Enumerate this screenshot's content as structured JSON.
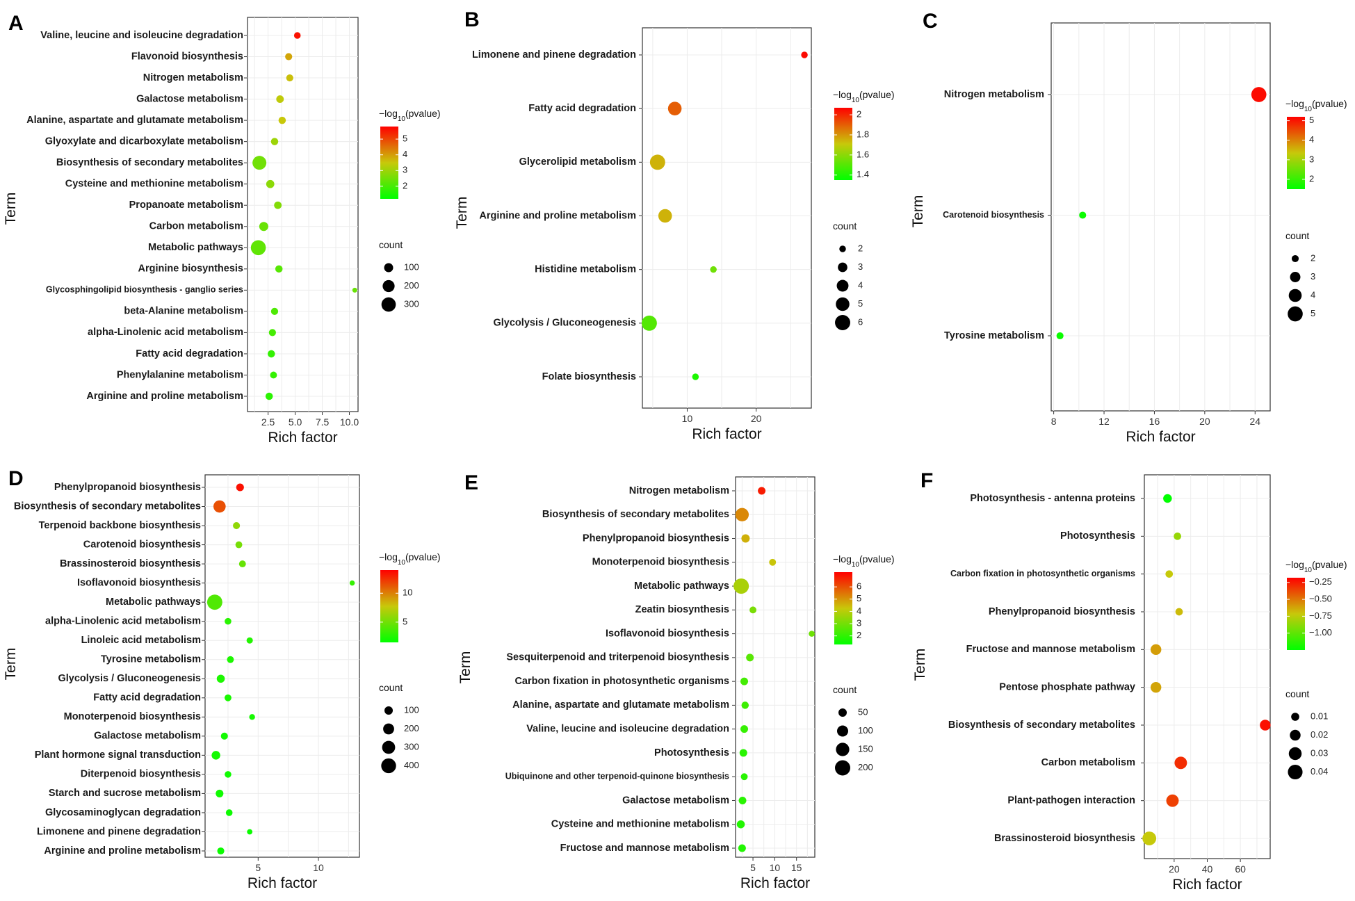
{
  "legend_titles": {
    "color": "-log10(pvalue)",
    "size": "count"
  },
  "chart_data": [
    {
      "panel": "A",
      "type": "scatter",
      "xlabel": "Rich factor",
      "ylabel": "Term",
      "xlim": [
        0.6,
        10.8
      ],
      "xticks": [
        2.5,
        5.0,
        7.5,
        10.0
      ],
      "xtick_labels": [
        "2.5",
        "5.0",
        "7.5",
        "10.0"
      ],
      "color_range": [
        1.2,
        5.8
      ],
      "color_ticks": [
        2,
        3,
        4,
        5
      ],
      "size_range": [
        1,
        380
      ],
      "size_ticks": [
        100,
        200,
        300
      ],
      "grid": true,
      "terms": [
        "Valine, leucine and isoleucine degradation",
        "Flavonoid biosynthesis",
        "Nitrogen metabolism",
        "Galactose metabolism",
        "Alanine, aspartate and glutamate metabolism",
        "Glyoxylate and dicarboxylate metabolism",
        "Biosynthesis of secondary metabolites",
        "Cysteine and methionine metabolism",
        "Propanoate metabolism",
        "Carbon metabolism",
        "Metabolic pathways",
        "Arginine biosynthesis",
        "Glycosphingolipid biosynthesis - ganglio series",
        "beta-Alanine metabolism",
        "alpha-Linolenic acid metabolism",
        "Fatty acid degradation",
        "Phenylalanine metabolism",
        "Arginine and proline metabolism"
      ],
      "rich_factor": [
        5.2,
        4.4,
        4.5,
        3.6,
        3.8,
        3.1,
        1.7,
        2.7,
        3.4,
        2.1,
        1.6,
        3.5,
        10.5,
        3.1,
        2.9,
        2.8,
        3.0,
        2.6
      ],
      "neg_log10_pvalue": [
        5.6,
        3.9,
        3.6,
        3.4,
        3.5,
        3.0,
        2.5,
        2.8,
        2.7,
        2.4,
        2.3,
        2.2,
        2.4,
        2.1,
        2.0,
        1.8,
        1.8,
        1.7
      ],
      "count": [
        40,
        50,
        50,
        60,
        55,
        55,
        280,
        75,
        60,
        100,
        330,
        55,
        8,
        50,
        50,
        55,
        45,
        55
      ]
    },
    {
      "panel": "B",
      "type": "scatter",
      "xlabel": "Rich factor",
      "ylabel": "Term",
      "xlim": [
        3.5,
        28.0
      ],
      "xticks": [
        10,
        20
      ],
      "xtick_labels": [
        "10",
        "20"
      ],
      "color_range": [
        1.35,
        2.07
      ],
      "color_ticks": [
        1.4,
        1.6,
        1.8,
        2.0
      ],
      "size_range": [
        1.5,
        6.5
      ],
      "size_ticks": [
        2,
        3,
        4,
        5,
        6
      ],
      "grid": true,
      "terms": [
        "Limonene and pinene degradation",
        "Fatty acid degradation",
        "Glycerolipid metabolism",
        "Arginine and proline metabolism",
        "Histidine metabolism",
        "Glycolysis / Gluconeogenesis",
        "Folate biosynthesis"
      ],
      "rich_factor": [
        27.0,
        8.2,
        5.7,
        6.8,
        13.8,
        4.5,
        11.2
      ],
      "neg_log10_pvalue": [
        2.05,
        1.9,
        1.75,
        1.75,
        1.55,
        1.5,
        1.4
      ],
      "count": [
        2,
        5,
        6,
        5,
        2,
        6,
        2
      ]
    },
    {
      "panel": "C",
      "type": "scatter",
      "xlabel": "Rich factor",
      "ylabel": "Term",
      "xlim": [
        7.8,
        25.2
      ],
      "xticks": [
        8,
        12,
        16,
        20,
        24
      ],
      "xtick_labels": [
        "8",
        "12",
        "16",
        "20",
        "24"
      ],
      "color_range": [
        1.5,
        5.2
      ],
      "color_ticks": [
        2,
        3,
        4,
        5
      ],
      "size_range": [
        1.5,
        5.5
      ],
      "size_ticks": [
        2,
        3,
        4,
        5
      ],
      "grid": true,
      "terms": [
        "Nitrogen metabolism",
        "Carotenoid biosynthesis",
        "Tyrosine metabolism"
      ],
      "rich_factor": [
        24.3,
        10.3,
        8.5
      ],
      "neg_log10_pvalue": [
        5.1,
        1.6,
        1.6
      ],
      "count": [
        5,
        2,
        2
      ]
    },
    {
      "panel": "D",
      "type": "scatter",
      "xlabel": "Rich factor",
      "ylabel": "Term",
      "xlim": [
        0.6,
        13.4
      ],
      "xticks": [
        5,
        10
      ],
      "xtick_labels": [
        "5",
        "10"
      ],
      "color_range": [
        1.5,
        14.0
      ],
      "color_ticks": [
        5,
        10
      ],
      "size_range": [
        1,
        470
      ],
      "size_ticks": [
        100,
        200,
        300,
        400
      ],
      "grid": true,
      "terms": [
        "Phenylpropanoid biosynthesis",
        "Biosynthesis of secondary metabolites",
        "Terpenoid backbone biosynthesis",
        "Carotenoid biosynthesis",
        "Brassinosteroid biosynthesis",
        "Isoflavonoid biosynthesis",
        "Metabolic pathways",
        "alpha-Linolenic acid metabolism",
        "Linoleic acid metabolism",
        "Tyrosine metabolism",
        "Glycolysis / Gluconeogenesis",
        "Fatty acid degradation",
        "Monoterpenoid biosynthesis",
        "Galactose metabolism",
        "Plant hormone signal transduction",
        "Diterpenoid biosynthesis",
        "Starch and sucrose metabolism",
        "Glycosaminoglycan degradation",
        "Limonene and pinene degradation",
        "Arginine and proline metabolism"
      ],
      "rich_factor": [
        3.5,
        1.8,
        3.2,
        3.4,
        3.7,
        12.8,
        1.4,
        2.5,
        4.3,
        2.7,
        1.9,
        2.5,
        4.5,
        2.2,
        1.5,
        2.5,
        1.8,
        2.6,
        4.3,
        1.9
      ],
      "neg_log10_pvalue": [
        13.5,
        11.5,
        6.0,
        5.2,
        4.7,
        3.2,
        4.0,
        2.8,
        2.6,
        2.4,
        2.4,
        2.3,
        2.2,
        2.1,
        2.1,
        2.0,
        2.0,
        1.9,
        1.8,
        1.8
      ],
      "count": [
        80,
        260,
        60,
        55,
        55,
        15,
        420,
        50,
        40,
        55,
        90,
        55,
        30,
        60,
        110,
        50,
        80,
        50,
        20,
        60
      ]
    },
    {
      "panel": "E",
      "type": "scatter",
      "xlabel": "Rich factor",
      "ylabel": "Term",
      "xlim": [
        1.0,
        19.2
      ],
      "xticks": [
        5,
        10,
        15
      ],
      "xtick_labels": [
        "5",
        "10",
        "15"
      ],
      "color_range": [
        1.3,
        7.2
      ],
      "color_ticks": [
        2,
        3,
        4,
        5,
        6
      ],
      "size_range": [
        5,
        220
      ],
      "size_ticks": [
        50,
        100,
        150,
        200
      ],
      "grid": true,
      "terms": [
        "Nitrogen metabolism",
        "Biosynthesis of secondary metabolites",
        "Phenylpropanoid biosynthesis",
        "Monoterpenoid biosynthesis",
        "Metabolic pathways",
        "Zeatin biosynthesis",
        "Isoflavonoid biosynthesis",
        "Sesquiterpenoid and triterpenoid biosynthesis",
        "Carbon fixation in photosynthetic organisms",
        "Alanine, aspartate and glutamate metabolism",
        "Valine, leucine and isoleucine degradation",
        "Photosynthesis",
        "Ubiquinone and other terpenoid-quinone biosynthesis",
        "Galactose metabolism",
        "Cysteine and methionine metabolism",
        "Fructose and mannose metabolism"
      ],
      "rich_factor": [
        7.0,
        2.5,
        3.3,
        9.5,
        2.3,
        5.0,
        18.5,
        4.3,
        3.0,
        3.2,
        3.0,
        2.8,
        3.0,
        2.6,
        2.2,
        2.5
      ],
      "neg_log10_pvalue": [
        6.8,
        5.2,
        4.6,
        4.3,
        3.8,
        3.1,
        2.9,
        2.6,
        2.3,
        2.2,
        2.1,
        1.9,
        1.9,
        1.9,
        1.8,
        1.8
      ],
      "count": [
        40,
        150,
        50,
        30,
        200,
        30,
        20,
        40,
        40,
        35,
        40,
        40,
        30,
        40,
        45,
        40
      ]
    },
    {
      "panel": "F",
      "type": "scatter",
      "xlabel": "Rich factor",
      "ylabel": "Term",
      "xlim": [
        2.0,
        78.0
      ],
      "xticks": [
        20,
        40,
        60
      ],
      "xtick_labels": [
        "20",
        "40",
        "60"
      ],
      "color_range": [
        -1.25,
        -0.18
      ],
      "color_ticks": [
        -1.0,
        -0.75,
        -0.5,
        -0.25
      ],
      "color_tick_labels": [
        "−1.00",
        "−0.75",
        "−0.50",
        "−0.25"
      ],
      "size_range": [
        0.001,
        0.048
      ],
      "size_ticks": [
        0.01,
        0.02,
        0.03,
        0.04
      ],
      "grid": true,
      "terms": [
        "Photosynthesis - antenna proteins",
        "Photosynthesis",
        "Carbon fixation in photosynthetic organisms",
        "Phenylpropanoid biosynthesis",
        "Fructose and mannose metabolism",
        "Pentose phosphate pathway",
        "Biosynthesis of secondary metabolites",
        "Carbon metabolism",
        "Plant-pathogen interaction",
        "Brassinosteroid biosynthesis"
      ],
      "rich_factor": [
        16,
        22,
        17,
        23,
        9,
        9,
        75,
        24,
        19,
        5
      ],
      "neg_log10_pvalue": [
        -1.25,
        -0.85,
        -0.72,
        -0.68,
        -0.6,
        -0.62,
        -0.22,
        -0.3,
        -0.35,
        -0.72
      ],
      "count": [
        0.012,
        0.008,
        0.008,
        0.008,
        0.02,
        0.02,
        0.02,
        0.028,
        0.028,
        0.035
      ]
    }
  ]
}
